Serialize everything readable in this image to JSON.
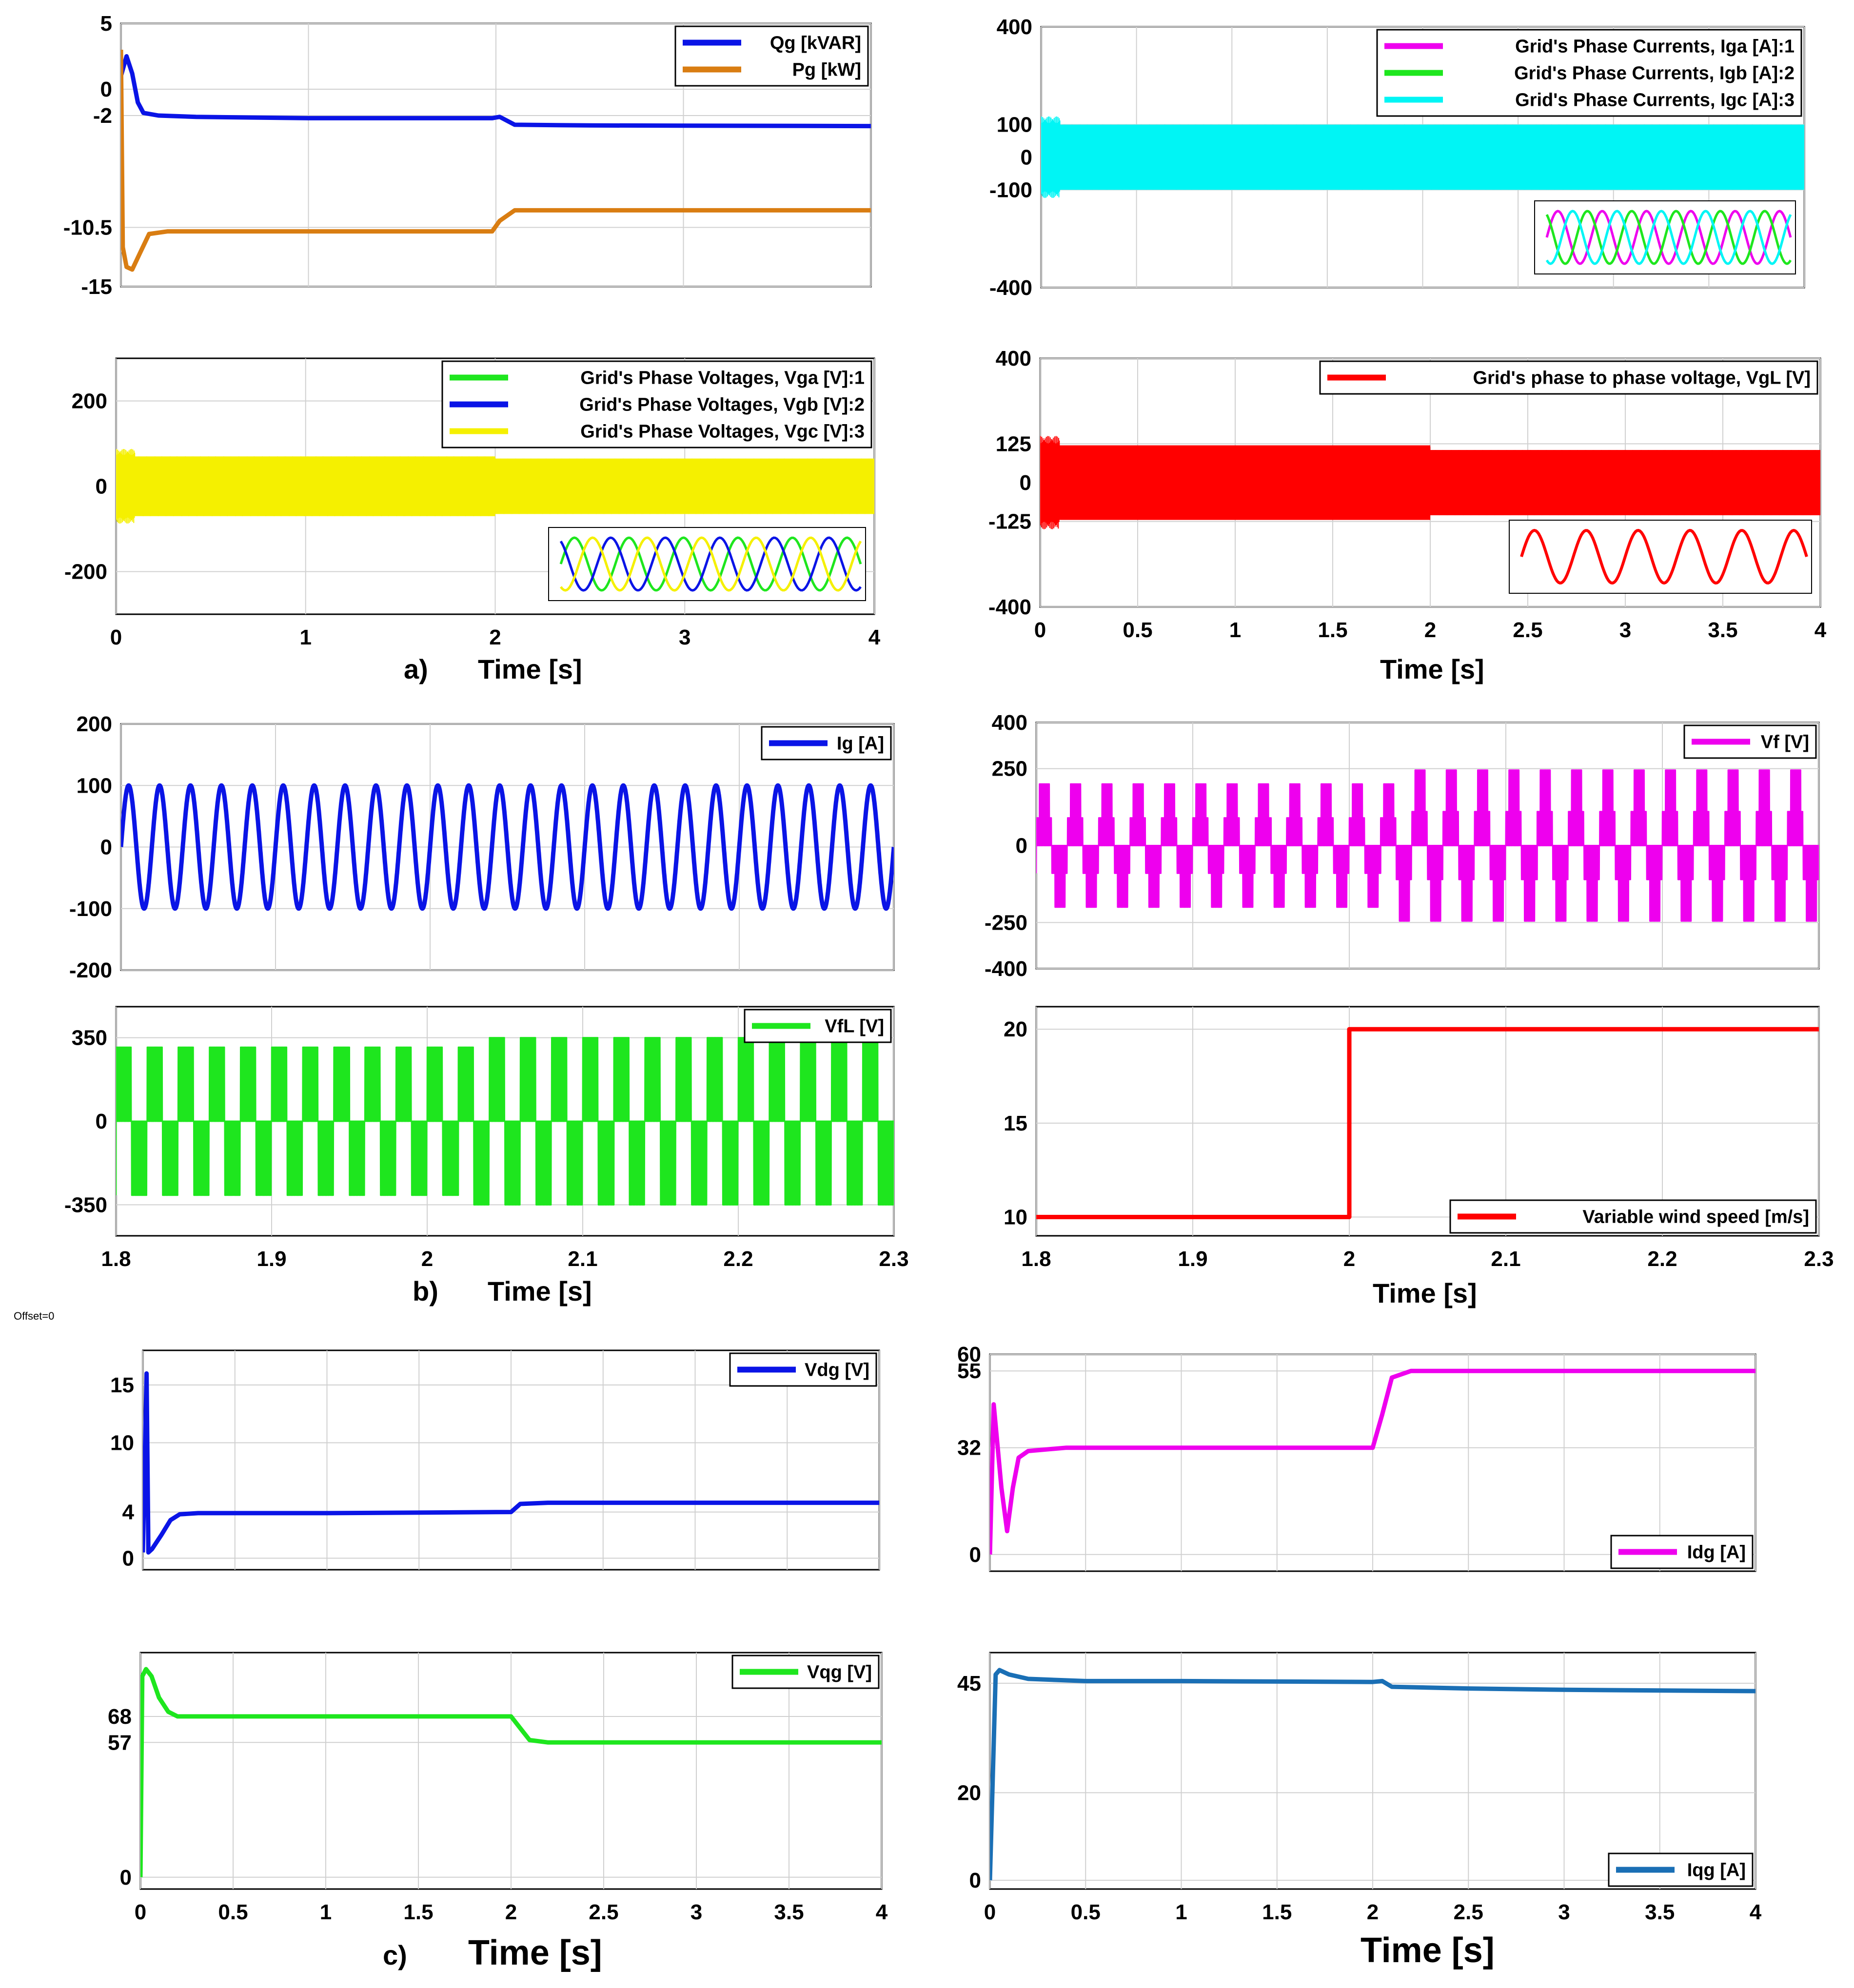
{
  "figure": {
    "offset_note": "Offset=0",
    "sections": [
      {
        "label": "a)",
        "xlabel": "Time [s]"
      },
      {
        "label": "",
        "xlabel": "Time [s]"
      },
      {
        "label": "b)",
        "xlabel": "Time [s]"
      },
      {
        "label": "",
        "xlabel": "Time [s]"
      },
      {
        "label": "c)",
        "xlabel": "Time [s]"
      },
      {
        "label": "",
        "xlabel": "Time [s]"
      }
    ]
  },
  "chart_data": [
    {
      "id": "a_power",
      "type": "line",
      "xlim": [
        0,
        4
      ],
      "ylim": [
        -15,
        5
      ],
      "xticks": [
        0,
        1,
        2,
        3,
        4
      ],
      "xtick_labels": [],
      "yticks": [
        5,
        0,
        -2,
        -10.5,
        -15
      ],
      "ytick_labels": [
        "5",
        "0",
        "-2",
        "-10.5",
        "-15"
      ],
      "legend_position": "top-right",
      "series": [
        {
          "name": "Qg [kVAR]",
          "color": "#0a14e6",
          "x": [
            0,
            0.03,
            0.06,
            0.09,
            0.12,
            0.2,
            0.4,
            1,
            1.98,
            2.02,
            2.1,
            2.5,
            4
          ],
          "y": [
            1,
            2.5,
            1.2,
            -1,
            -1.8,
            -2,
            -2.1,
            -2.2,
            -2.2,
            -2.1,
            -2.7,
            -2.75,
            -2.8
          ]
        },
        {
          "name": "Pg [kW]",
          "color": "#d97d12",
          "x": [
            0,
            0.01,
            0.03,
            0.06,
            0.1,
            0.15,
            0.25,
            0.5,
            1,
            1.98,
            2.02,
            2.1,
            2.5,
            4
          ],
          "y": [
            3,
            -12,
            -13.5,
            -13.7,
            -12.5,
            -11,
            -10.8,
            -10.8,
            -10.8,
            -10.8,
            -10,
            -9.2,
            -9.2,
            -9.2
          ]
        }
      ]
    },
    {
      "id": "a_currents",
      "type": "line",
      "xlim": [
        0,
        4
      ],
      "ylim": [
        -400,
        400
      ],
      "xticks": [
        0,
        0.5,
        1,
        1.5,
        2,
        2.5,
        3,
        3.5,
        4
      ],
      "xtick_labels": [],
      "yticks": [
        400,
        100,
        0,
        -100,
        -400
      ],
      "ytick_labels": [
        "400",
        "100",
        "0",
        "-100",
        "-400"
      ],
      "legend_position": "top-right",
      "envelope": {
        "amplitude": 100,
        "color": "#00f5f5"
      },
      "inset": "three-phase current waveforms",
      "series": [
        {
          "name": "Grid's Phase Currents, Iga [A]:1",
          "color": "#ee00ee",
          "amplitude": 100
        },
        {
          "name": "Grid's Phase Currents, Igb [A]:2",
          "color": "#1ee61e",
          "amplitude": 100
        },
        {
          "name": "Grid's Phase Currents, Igc [A]:3",
          "color": "#00f5f5",
          "amplitude": 100
        }
      ]
    },
    {
      "id": "a_voltages",
      "type": "line",
      "xlim": [
        0,
        4
      ],
      "ylim": [
        -300,
        300
      ],
      "xticks": [
        0,
        1,
        2,
        3,
        4
      ],
      "xtick_labels": [
        "0",
        "1",
        "2",
        "3",
        "4"
      ],
      "yticks": [
        200,
        0,
        -200
      ],
      "ytick_labels": [
        "200",
        "0",
        "-200"
      ],
      "legend_position": "top-right",
      "envelope": {
        "amplitude": 70,
        "amplitude_after_2s": 65,
        "color": "#f5f000"
      },
      "inset": "three-phase voltage waveforms",
      "series": [
        {
          "name": "Grid's Phase Voltages, Vga [V]:1",
          "color": "#1ee61e",
          "amplitude": 70
        },
        {
          "name": "Grid's Phase Voltages, Vgb [V]:2",
          "color": "#0a14e6",
          "amplitude": 70
        },
        {
          "name": "Grid's Phase Voltages, Vgc [V]:3",
          "color": "#f5f000",
          "amplitude": 70
        }
      ]
    },
    {
      "id": "a_linevoltage",
      "type": "line",
      "xlim": [
        0,
        4
      ],
      "ylim": [
        -400,
        400
      ],
      "xticks": [
        0,
        0.5,
        1,
        1.5,
        2,
        2.5,
        3,
        3.5,
        4
      ],
      "xtick_labels": [
        "0",
        "0.5",
        "1",
        "1.5",
        "2",
        "2.5",
        "3",
        "3.5",
        "4"
      ],
      "yticks": [
        400,
        125,
        0,
        -125,
        -400
      ],
      "ytick_labels": [
        "400",
        "125",
        "0",
        "-125",
        "-400"
      ],
      "legend_position": "top-right",
      "envelope": {
        "amplitude": 120,
        "amplitude_after_2s": 105,
        "color": "#ff0000"
      },
      "inset": "line voltage waveform",
      "series": [
        {
          "name": "Grid's phase to phase voltage, VgL [V]",
          "color": "#ff0000",
          "amplitude": 120
        }
      ]
    },
    {
      "id": "b_ig",
      "type": "line",
      "xlim": [
        1.8,
        2.3
      ],
      "ylim": [
        -200,
        200
      ],
      "xticks": [
        1.8,
        1.9,
        2,
        2.1,
        2.2,
        2.3
      ],
      "xtick_labels": [],
      "yticks": [
        200,
        100,
        0,
        -100,
        -200
      ],
      "ytick_labels": [
        "200",
        "100",
        "0",
        "-100",
        "-200"
      ],
      "legend_position": "top-right",
      "series": [
        {
          "name": "Ig [A]",
          "color": "#0a14e6",
          "amplitude": 100,
          "frequency_hz": 50
        }
      ]
    },
    {
      "id": "b_vf",
      "type": "line",
      "xlim": [
        1.8,
        2.3
      ],
      "ylim": [
        -400,
        400
      ],
      "xticks": [
        1.8,
        1.9,
        2,
        2.1,
        2.2,
        2.3
      ],
      "xtick_labels": [],
      "yticks": [
        400,
        250,
        0,
        -250,
        -400
      ],
      "ytick_labels": [
        "400",
        "250",
        "0",
        "-250",
        "-400"
      ],
      "legend_position": "top-right",
      "series": [
        {
          "name": "Vf [V]",
          "color": "#ee00ee",
          "amplitude": 200,
          "amplitude_after_2s": 245,
          "frequency_hz": 50
        }
      ]
    },
    {
      "id": "b_vfl",
      "type": "line",
      "xlim": [
        1.8,
        2.3
      ],
      "ylim": [
        -480,
        480
      ],
      "xticks": [
        1.8,
        1.9,
        2,
        2.1,
        2.2,
        2.3
      ],
      "xtick_labels": [
        "1.8",
        "1.9",
        "2",
        "2.1",
        "2.2",
        "2.3"
      ],
      "yticks": [
        350,
        0,
        -350
      ],
      "ytick_labels": [
        "350",
        "0",
        "-350"
      ],
      "legend_position": "top-right",
      "series": [
        {
          "name": "VfL [V]",
          "color": "#1ee61e",
          "amplitude": 310,
          "amplitude_after_2s": 350,
          "frequency_hz": 50
        }
      ]
    },
    {
      "id": "b_wind",
      "type": "line",
      "xlim": [
        1.8,
        2.3
      ],
      "ylim": [
        9,
        21.2
      ],
      "xticks": [
        1.8,
        1.9,
        2,
        2.1,
        2.2,
        2.3
      ],
      "xtick_labels": [
        "1.8",
        "1.9",
        "2",
        "2.1",
        "2.2",
        "2.3"
      ],
      "yticks": [
        20,
        15,
        10
      ],
      "ytick_labels": [
        "20",
        "15",
        "10"
      ],
      "legend_position": "bottom-right",
      "series": [
        {
          "name": "Variable wind speed [m/s]",
          "color": "#ff0000",
          "x": [
            1.8,
            2.0,
            2.0,
            2.3
          ],
          "y": [
            10,
            10,
            20,
            20
          ]
        }
      ]
    },
    {
      "id": "c_vdg",
      "type": "line",
      "xlim": [
        0,
        4
      ],
      "ylim": [
        -1,
        18
      ],
      "xticks": [
        0,
        0.5,
        1,
        1.5,
        2,
        2.5,
        3,
        3.5,
        4
      ],
      "xtick_labels": [],
      "yticks": [
        15,
        10,
        4,
        0
      ],
      "ytick_labels": [
        "15",
        "10",
        "4",
        "0"
      ],
      "legend_position": "top-right",
      "series": [
        {
          "name": "Vdg [V]",
          "color": "#0a14e6",
          "x": [
            0,
            0.02,
            0.03,
            0.05,
            0.1,
            0.15,
            0.2,
            0.3,
            1,
            2,
            2.05,
            2.2,
            3,
            4
          ],
          "y": [
            0.5,
            16,
            0.5,
            0.8,
            2,
            3.3,
            3.8,
            3.9,
            3.9,
            4,
            4.7,
            4.8,
            4.8,
            4.8
          ]
        }
      ]
    },
    {
      "id": "c_idg",
      "type": "line",
      "xlim": [
        0,
        4
      ],
      "ylim": [
        -5,
        60
      ],
      "xticks": [
        0,
        0.5,
        1,
        1.5,
        2,
        2.5,
        3,
        3.5,
        4
      ],
      "xtick_labels": [],
      "yticks": [
        60,
        55,
        32,
        0
      ],
      "ytick_labels": [
        "60",
        "55",
        "32",
        "0"
      ],
      "legend_position": "bottom-right",
      "series": [
        {
          "name": "Idg [A]",
          "color": "#ee00ee",
          "x": [
            0,
            0.02,
            0.06,
            0.09,
            0.12,
            0.15,
            0.2,
            0.4,
            1,
            2,
            2.05,
            2.1,
            2.2,
            3,
            4
          ],
          "y": [
            0,
            45,
            20,
            7,
            20,
            29,
            31,
            32,
            32,
            32,
            42,
            53,
            55,
            55,
            55
          ]
        }
      ]
    },
    {
      "id": "c_vqg",
      "type": "line",
      "xlim": [
        0,
        4
      ],
      "ylim": [
        -5,
        95
      ],
      "xticks": [
        0,
        0.5,
        1,
        1.5,
        2,
        2.5,
        3,
        3.5,
        4
      ],
      "xtick_labels": [
        "0",
        "0.5",
        "1",
        "1.5",
        "2",
        "2.5",
        "3",
        "3.5",
        "4"
      ],
      "yticks": [
        68,
        57,
        0
      ],
      "ytick_labels": [
        "68",
        "57",
        "0"
      ],
      "legend_position": "top-right",
      "series": [
        {
          "name": "Vqg [V]",
          "color": "#1ee61e",
          "x": [
            0,
            0.01,
            0.03,
            0.06,
            0.1,
            0.15,
            0.2,
            0.5,
            2,
            2.05,
            2.1,
            2.2,
            4
          ],
          "y": [
            0,
            85,
            88,
            85,
            76,
            70,
            68,
            68,
            68,
            63,
            58,
            57,
            57
          ]
        }
      ]
    },
    {
      "id": "c_iqg",
      "type": "line",
      "xlim": [
        0,
        4
      ],
      "ylim": [
        -2,
        52
      ],
      "xticks": [
        0,
        0.5,
        1,
        1.5,
        2,
        2.5,
        3,
        3.5,
        4
      ],
      "xtick_labels": [
        "0",
        "0.5",
        "1",
        "1.5",
        "2",
        "2.5",
        "3",
        "3.5",
        "4"
      ],
      "yticks": [
        45,
        20,
        0
      ],
      "ytick_labels": [
        "45",
        "20",
        "0"
      ],
      "legend_position": "bottom-right",
      "series": [
        {
          "name": "Iqg [A]",
          "color": "#1a6fb5",
          "x": [
            0,
            0.03,
            0.05,
            0.1,
            0.2,
            0.5,
            1,
            2,
            2.05,
            2.1,
            2.5,
            3,
            4
          ],
          "y": [
            0,
            47,
            48,
            47,
            46,
            45.5,
            45.5,
            45.3,
            45.5,
            44.2,
            43.8,
            43.5,
            43.2
          ]
        }
      ]
    }
  ]
}
